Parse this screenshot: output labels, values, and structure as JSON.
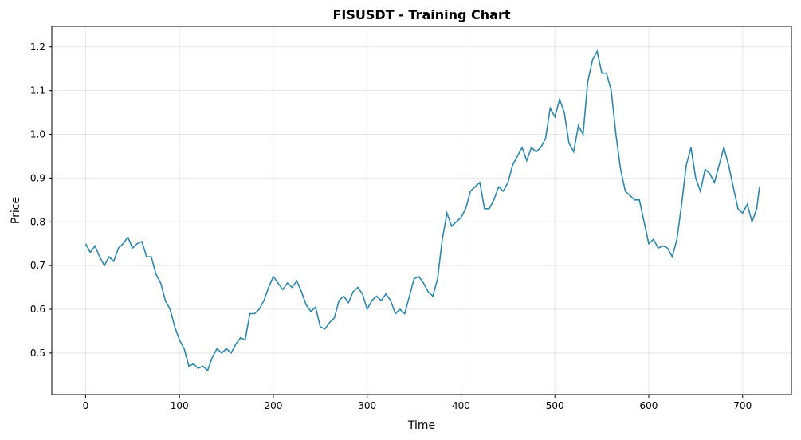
{
  "chart_data": {
    "type": "line",
    "title": "FISUSDT - Training Chart",
    "x_label": "Time",
    "y_label": "Price",
    "x": [
      0,
      5,
      10,
      15,
      20,
      25,
      30,
      35,
      40,
      45,
      50,
      55,
      60,
      65,
      70,
      75,
      80,
      85,
      90,
      95,
      100,
      105,
      110,
      115,
      120,
      125,
      130,
      135,
      140,
      145,
      150,
      155,
      160,
      165,
      170,
      175,
      180,
      185,
      190,
      195,
      200,
      205,
      210,
      215,
      220,
      225,
      230,
      235,
      240,
      245,
      250,
      255,
      260,
      265,
      270,
      275,
      280,
      285,
      290,
      295,
      300,
      305,
      310,
      315,
      320,
      325,
      330,
      335,
      340,
      345,
      350,
      355,
      360,
      365,
      370,
      375,
      380,
      385,
      390,
      395,
      400,
      405,
      410,
      415,
      420,
      425,
      430,
      435,
      440,
      445,
      450,
      455,
      460,
      465,
      470,
      475,
      480,
      485,
      490,
      495,
      500,
      505,
      510,
      515,
      520,
      525,
      530,
      535,
      540,
      545,
      550,
      555,
      560,
      565,
      570,
      575,
      580,
      585,
      590,
      595,
      600,
      605,
      610,
      615,
      620,
      625,
      630,
      635,
      640,
      645,
      650,
      655,
      660,
      665,
      670,
      675,
      680,
      685,
      690,
      695,
      700,
      705,
      710,
      715,
      718
    ],
    "series": [
      {
        "name": "Price",
        "color": "#2e86ab",
        "values": [
          0.75,
          0.73,
          0.745,
          0.72,
          0.7,
          0.72,
          0.71,
          0.74,
          0.75,
          0.765,
          0.74,
          0.75,
          0.755,
          0.72,
          0.72,
          0.68,
          0.66,
          0.62,
          0.6,
          0.56,
          0.53,
          0.51,
          0.47,
          0.475,
          0.465,
          0.47,
          0.46,
          0.49,
          0.51,
          0.5,
          0.51,
          0.5,
          0.52,
          0.535,
          0.53,
          0.59,
          0.59,
          0.6,
          0.62,
          0.65,
          0.675,
          0.66,
          0.645,
          0.66,
          0.65,
          0.665,
          0.64,
          0.61,
          0.595,
          0.605,
          0.56,
          0.555,
          0.57,
          0.58,
          0.62,
          0.63,
          0.615,
          0.64,
          0.65,
          0.635,
          0.6,
          0.62,
          0.63,
          0.62,
          0.635,
          0.62,
          0.59,
          0.6,
          0.59,
          0.63,
          0.67,
          0.675,
          0.66,
          0.64,
          0.63,
          0.67,
          0.76,
          0.82,
          0.79,
          0.8,
          0.81,
          0.83,
          0.87,
          0.88,
          0.89,
          0.83,
          0.83,
          0.85,
          0.88,
          0.87,
          0.89,
          0.93,
          0.95,
          0.97,
          0.94,
          0.97,
          0.96,
          0.97,
          0.99,
          1.06,
          1.04,
          1.08,
          1.05,
          0.98,
          0.96,
          1.02,
          1.0,
          1.12,
          1.17,
          1.19,
          1.14,
          1.14,
          1.1,
          1.0,
          0.92,
          0.87,
          0.86,
          0.85,
          0.85,
          0.8,
          0.75,
          0.76,
          0.74,
          0.745,
          0.74,
          0.72,
          0.76,
          0.84,
          0.93,
          0.97,
          0.9,
          0.87,
          0.92,
          0.91,
          0.89,
          0.93,
          0.97,
          0.93,
          0.88,
          0.83,
          0.82,
          0.84,
          0.8,
          0.83,
          0.88
        ]
      }
    ],
    "xlim": [
      -36,
      752
    ],
    "ylim": [
      0.405,
      1.247
    ],
    "xticks": [
      0,
      100,
      200,
      300,
      400,
      500,
      600,
      700
    ],
    "yticks": [
      0.5,
      0.6,
      0.7,
      0.8,
      0.9,
      {
        "value": 1,
        "label": "1.0"
      },
      1.1,
      1.2
    ],
    "grid": true
  }
}
